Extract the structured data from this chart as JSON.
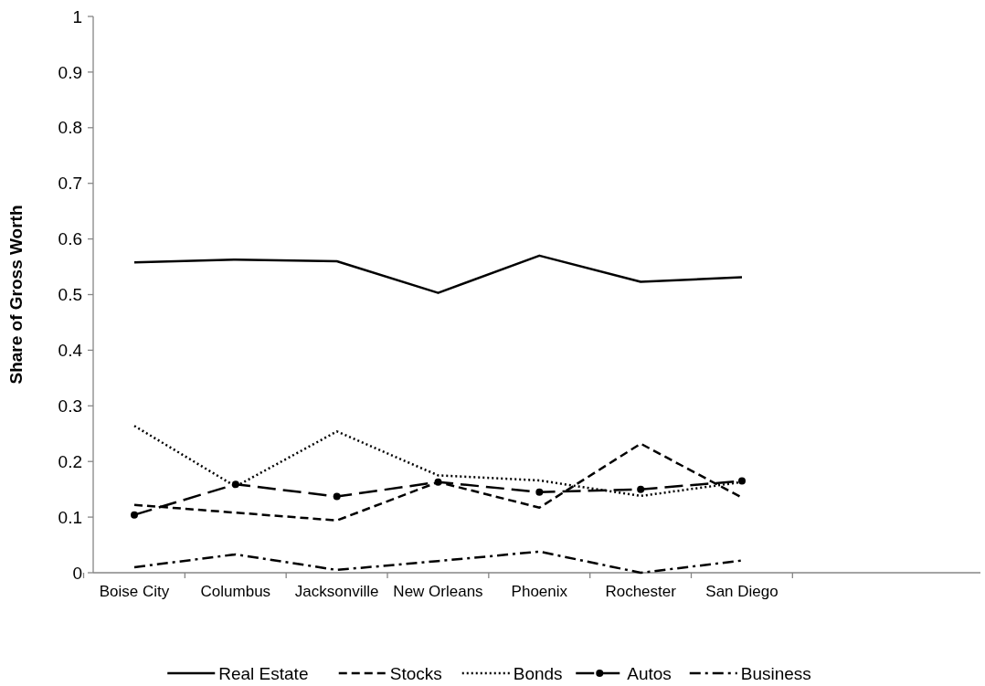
{
  "chart_data": {
    "type": "line",
    "ylabel": "Share of Gross Worth",
    "categories": [
      "Boise City",
      "Columbus",
      "Jacksonville",
      "New Orleans",
      "Phoenix",
      "Rochester",
      "San Diego"
    ],
    "ylim": [
      0,
      1
    ],
    "yticks": [
      0,
      0.1,
      0.2,
      0.3,
      0.4,
      0.5,
      0.6,
      0.7,
      0.8,
      0.9,
      1
    ],
    "grid": false,
    "legend": "bottom",
    "series": [
      {
        "name": "Real Estate",
        "color": "#000000",
        "line_style": "solid",
        "marker": "none",
        "values": [
          0.558,
          0.563,
          0.56,
          0.503,
          0.57,
          0.523,
          0.531
        ]
      },
      {
        "name": "Stocks",
        "color": "#000000",
        "line_style": "dashed",
        "marker": "none",
        "values": [
          0.122,
          0.108,
          0.094,
          0.163,
          0.117,
          0.232,
          0.135
        ]
      },
      {
        "name": "Bonds",
        "color": "#000000",
        "line_style": "dotted",
        "marker": "none",
        "values": [
          0.264,
          0.155,
          0.254,
          0.175,
          0.166,
          0.138,
          0.163
        ]
      },
      {
        "name": "Autos",
        "color": "#000000",
        "line_style": "longdash",
        "marker": "circle",
        "values": [
          0.104,
          0.159,
          0.137,
          0.163,
          0.145,
          0.15,
          0.165
        ]
      },
      {
        "name": "Business",
        "color": "#000000",
        "line_style": "dashdot",
        "marker": "none",
        "values": [
          0.01,
          0.033,
          0.005,
          0.021,
          0.038,
          0.0,
          0.022
        ]
      }
    ]
  }
}
